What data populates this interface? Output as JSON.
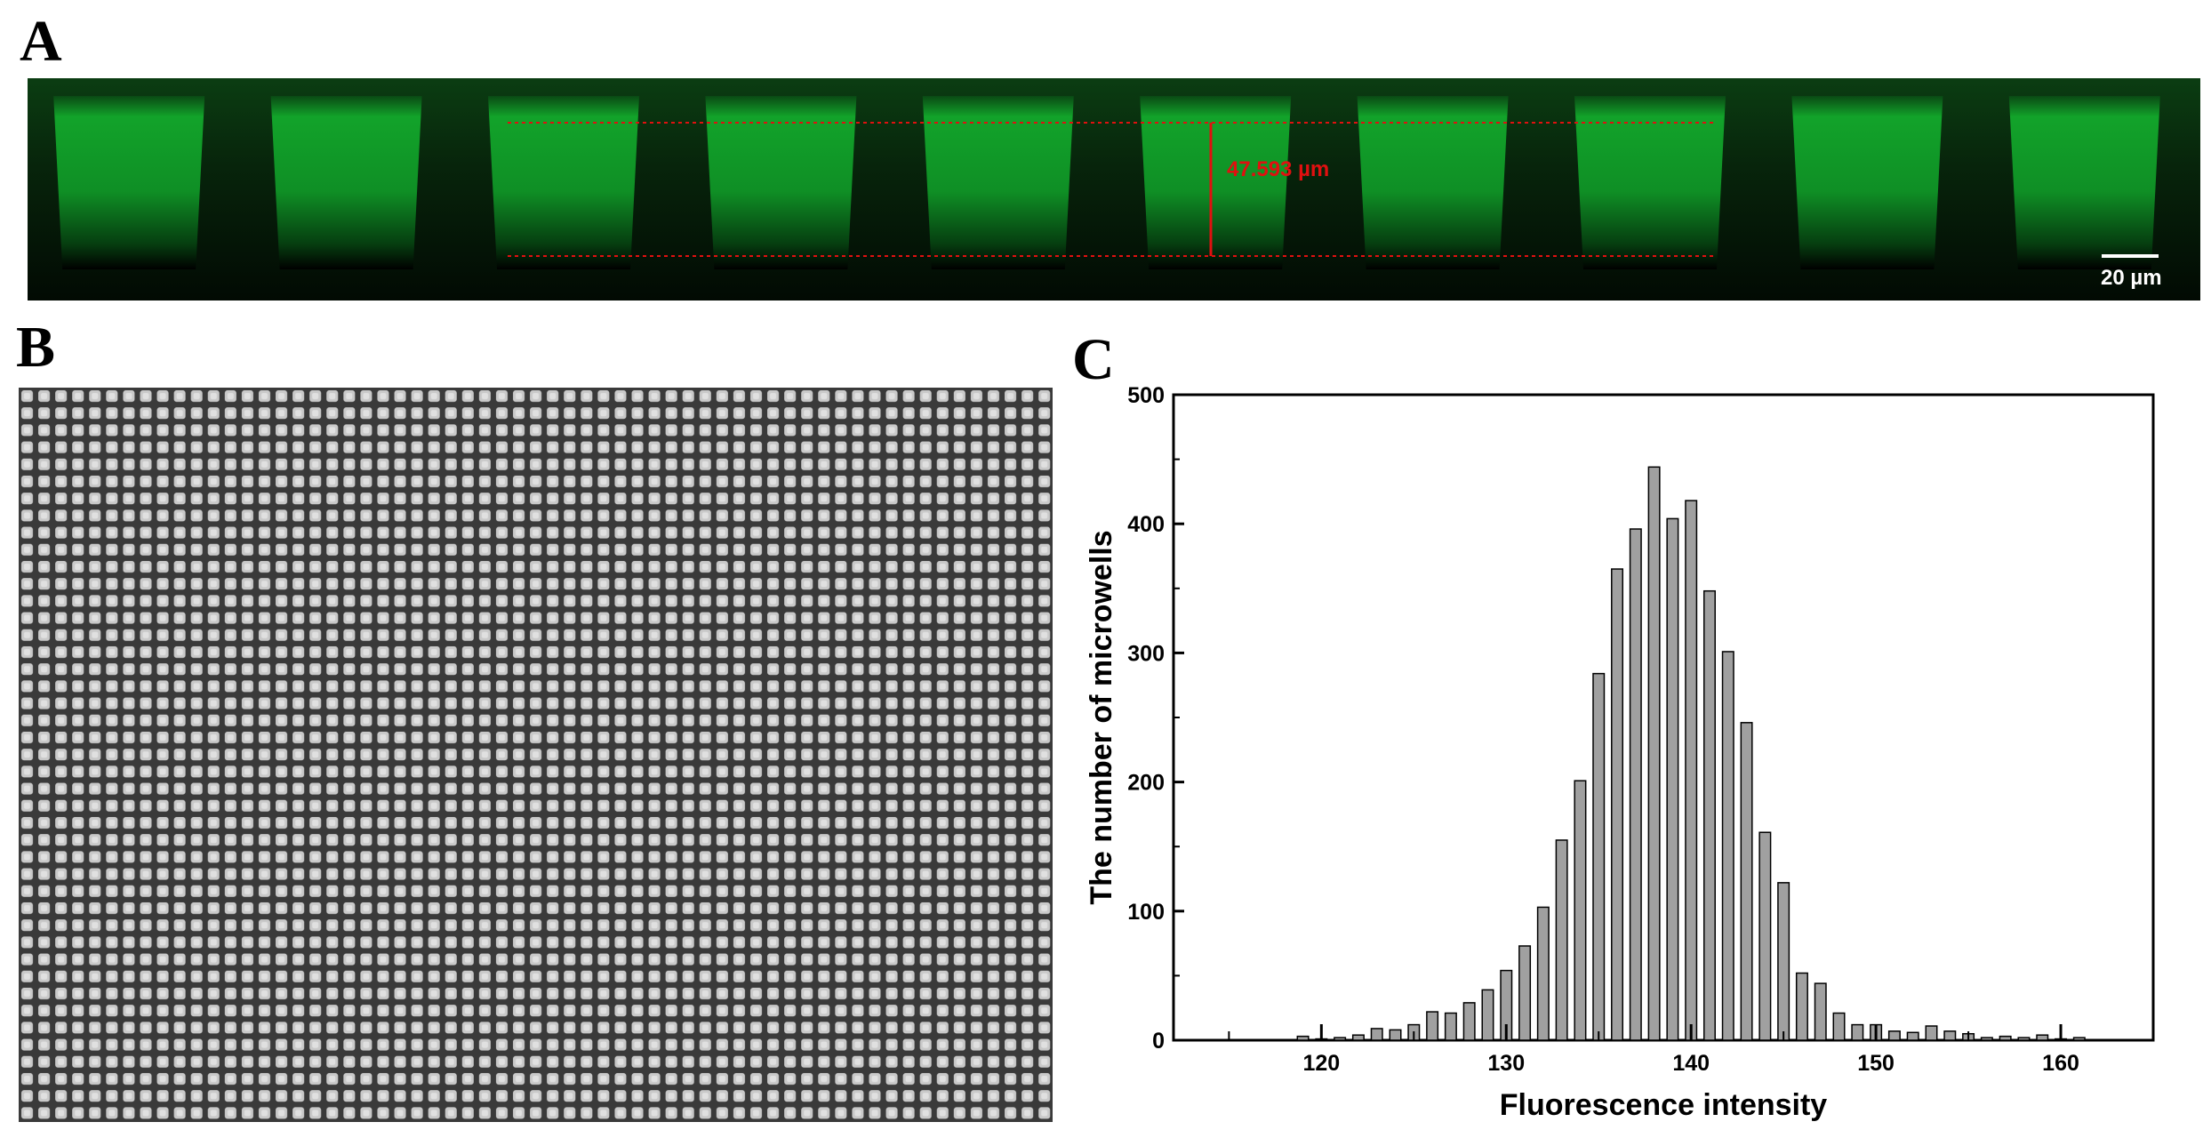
{
  "panels": {
    "a": {
      "letter": "A",
      "measurement_label": "47.593 µm",
      "scale_bar_label": "20 µm",
      "well_count": 10,
      "colors": {
        "fluorescence": "#12a32a",
        "background": "#000000",
        "annotation": "#e01010"
      }
    },
    "b": {
      "letter": "B",
      "grid_columns": 61,
      "grid_rows": 43,
      "colors": {
        "cell": "#c9c9c9",
        "border": "#3a3a3a"
      }
    },
    "c": {
      "letter": "C"
    }
  },
  "chart_data": {
    "type": "bar",
    "title": "",
    "xlabel": "Fluorescence intensity",
    "ylabel": "The number of microwells",
    "xlim": [
      112,
      165
    ],
    "ylim": [
      0,
      500
    ],
    "x_ticks": [
      120,
      130,
      140,
      150,
      160
    ],
    "y_ticks": [
      0,
      100,
      200,
      300,
      400,
      500
    ],
    "grid": false,
    "bar_color": "#a0a0a0",
    "x": [
      119,
      120,
      121,
      122,
      123,
      124,
      125,
      126,
      127,
      128,
      129,
      130,
      131,
      132,
      133,
      134,
      135,
      136,
      137,
      138,
      139,
      140,
      141,
      142,
      143,
      144,
      145,
      146,
      147,
      148,
      149,
      150,
      151,
      152,
      153,
      154,
      155,
      156,
      157,
      158,
      159,
      160,
      161
    ],
    "values": [
      3,
      1,
      2,
      4,
      9,
      8,
      12,
      22,
      21,
      29,
      39,
      54,
      73,
      103,
      155,
      201,
      284,
      365,
      396,
      444,
      404,
      418,
      348,
      301,
      246,
      161,
      122,
      52,
      44,
      21,
      12,
      12,
      7,
      6,
      11,
      7,
      5,
      2,
      3,
      2,
      4,
      1,
      2
    ]
  }
}
